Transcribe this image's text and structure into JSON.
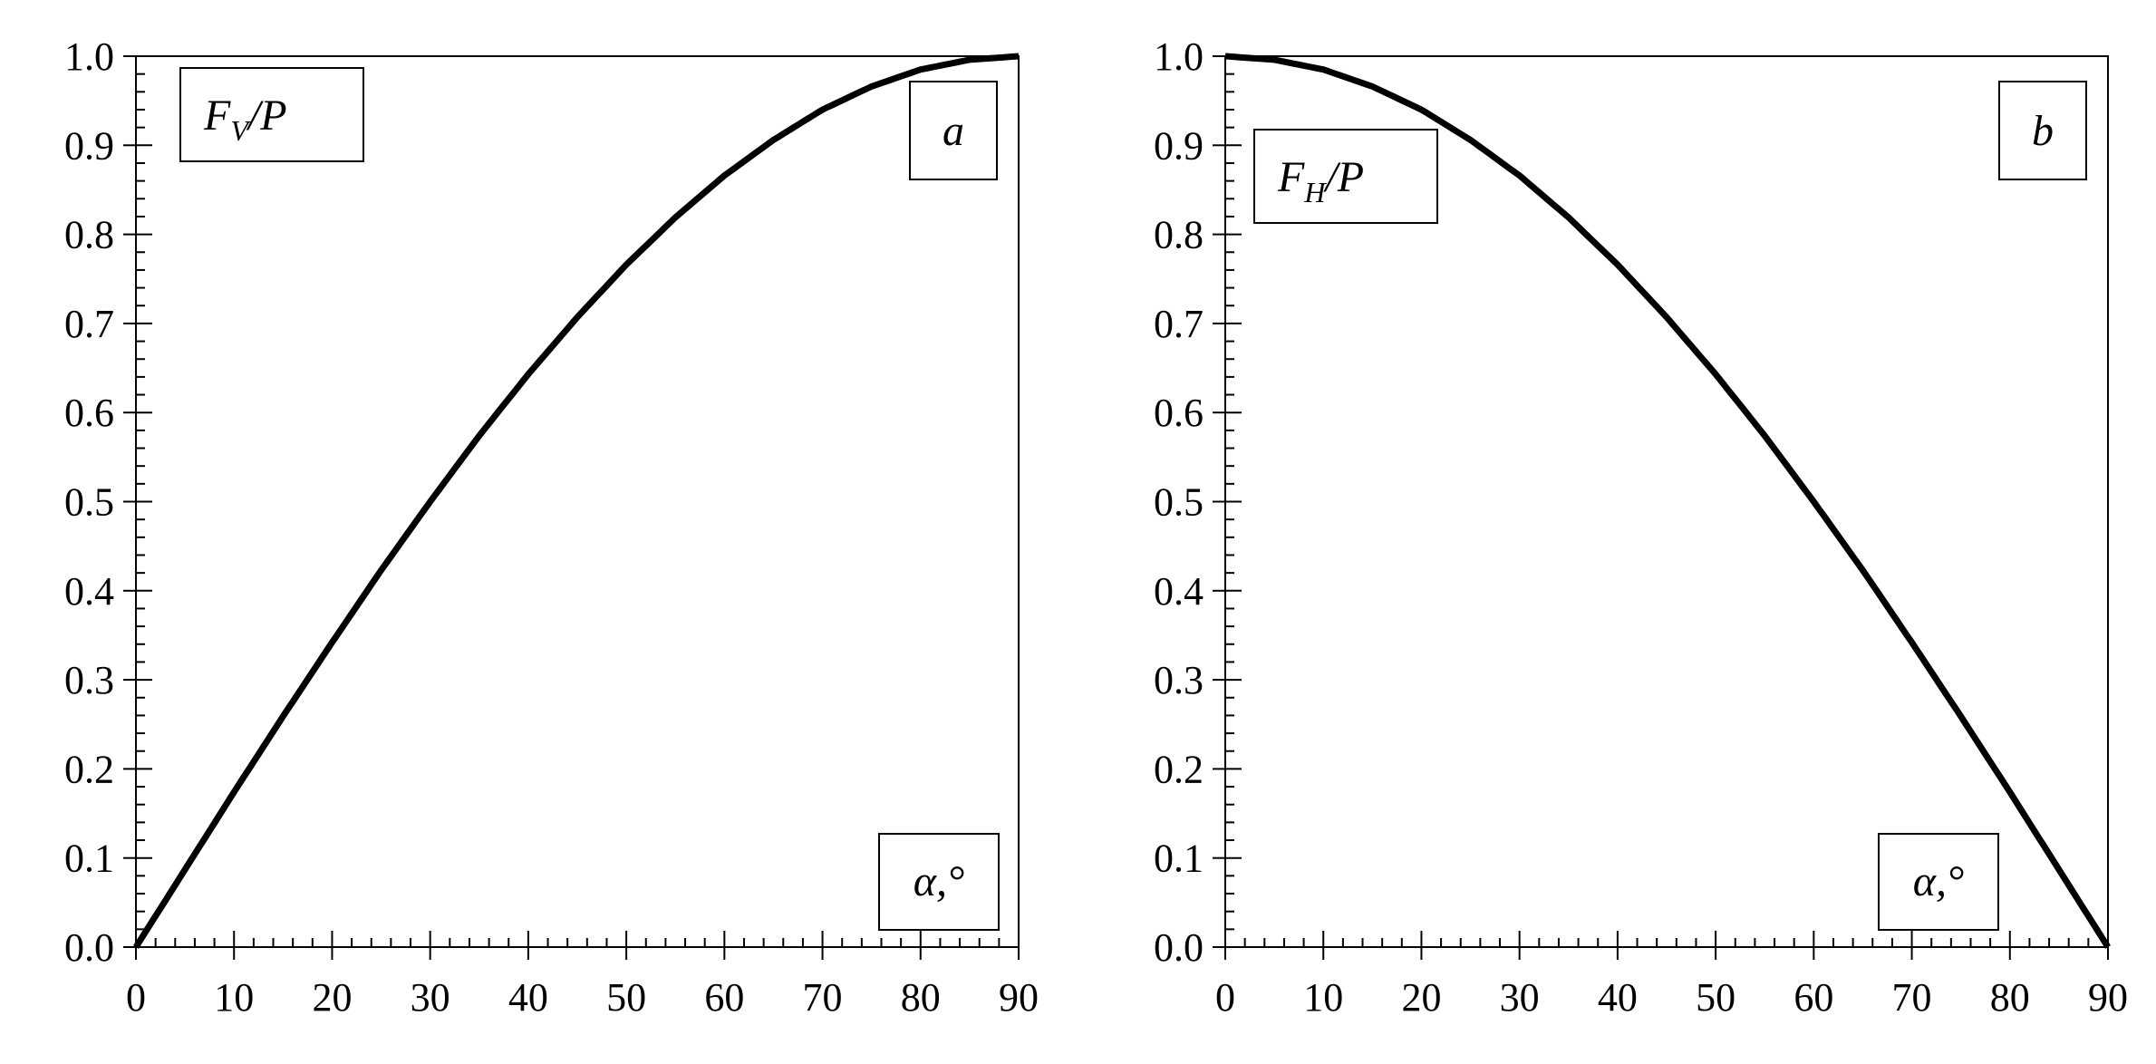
{
  "chart_data": [
    {
      "type": "line",
      "panel_label": "a",
      "ylabel_main": "F",
      "ylabel_sub": "V",
      "ylabel_tail": "/P",
      "xlabel": "α,°",
      "xlim": [
        0,
        90
      ],
      "ylim": [
        0,
        1
      ],
      "x_ticks": [
        "0",
        "10",
        "20",
        "30",
        "40",
        "50",
        "60",
        "70",
        "80",
        "90"
      ],
      "y_ticks": [
        "0.0",
        "0.1",
        "0.2",
        "0.3",
        "0.4",
        "0.5",
        "0.6",
        "0.7",
        "0.8",
        "0.9",
        "1.0"
      ],
      "series": [
        {
          "x": [
            0,
            5,
            10,
            15,
            20,
            25,
            30,
            35,
            40,
            45,
            50,
            55,
            60,
            65,
            70,
            75,
            80,
            85,
            90
          ],
          "y": [
            0,
            0.087,
            0.174,
            0.259,
            0.342,
            0.423,
            0.5,
            0.574,
            0.643,
            0.707,
            0.766,
            0.819,
            0.866,
            0.906,
            0.94,
            0.966,
            0.985,
            0.996,
            1.0
          ]
        }
      ]
    },
    {
      "type": "line",
      "panel_label": "b",
      "ylabel_main": "F",
      "ylabel_sub": "H",
      "ylabel_tail": "/P",
      "xlabel": "α,°",
      "xlim": [
        0,
        90
      ],
      "ylim": [
        0,
        1
      ],
      "x_ticks": [
        "0",
        "10",
        "20",
        "30",
        "40",
        "50",
        "60",
        "70",
        "80",
        "90"
      ],
      "y_ticks": [
        "0.0",
        "0.1",
        "0.2",
        "0.3",
        "0.4",
        "0.5",
        "0.6",
        "0.7",
        "0.8",
        "0.9",
        "1.0"
      ],
      "series": [
        {
          "x": [
            0,
            5,
            10,
            15,
            20,
            25,
            30,
            35,
            40,
            45,
            50,
            55,
            60,
            65,
            70,
            75,
            80,
            85,
            90
          ],
          "y": [
            1.0,
            0.996,
            0.985,
            0.966,
            0.94,
            0.906,
            0.866,
            0.819,
            0.766,
            0.707,
            0.643,
            0.574,
            0.5,
            0.423,
            0.342,
            0.259,
            0.174,
            0.087,
            0
          ]
        }
      ]
    }
  ]
}
